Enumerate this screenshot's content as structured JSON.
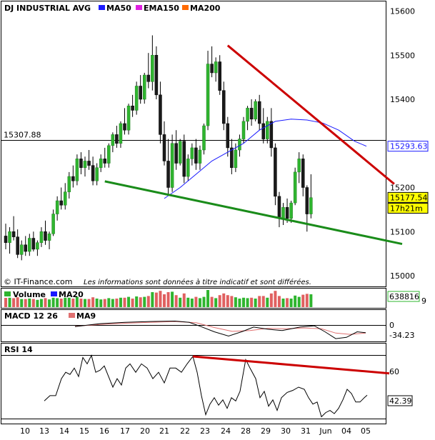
{
  "chart_data": [
    {
      "type": "candlestick",
      "title": "DJ INDUSTRIAL AVG",
      "legend": [
        {
          "name": "MA50",
          "color": "#1a1aff"
        },
        {
          "name": "EMA150",
          "color": "#e020e0"
        },
        {
          "name": "MA200",
          "color": "#ff6a00"
        }
      ],
      "ylim": [
        15000,
        15600
      ],
      "yticks": [
        15000,
        15100,
        15200,
        15300,
        15400,
        15500,
        15600
      ],
      "reference_level": {
        "label": "15307.88",
        "value": 15307.88
      },
      "badges": [
        {
          "text": "15293.63",
          "value": 15293.63,
          "color": "#1a1aff",
          "fill": "#ffffff"
        },
        {
          "text": "15177.54",
          "value": 15177.54,
          "color": "#000000",
          "fill": "#ffff00"
        },
        {
          "text": "17h21m",
          "value": 15153,
          "color": "#000000",
          "fill": "#ffff00"
        }
      ],
      "candles": [
        {
          "o": 15090,
          "h": 15118,
          "l": 15060,
          "c": 15075
        },
        {
          "o": 15075,
          "h": 15110,
          "l": 15050,
          "c": 15100
        },
        {
          "o": 15100,
          "h": 15135,
          "l": 15080,
          "c": 15088
        },
        {
          "o": 15088,
          "h": 15105,
          "l": 15040,
          "c": 15048
        },
        {
          "o": 15048,
          "h": 15080,
          "l": 15035,
          "c": 15070
        },
        {
          "o": 15070,
          "h": 15090,
          "l": 15045,
          "c": 15055
        },
        {
          "o": 15055,
          "h": 15095,
          "l": 15045,
          "c": 15085
        },
        {
          "o": 15085,
          "h": 15100,
          "l": 15055,
          "c": 15060
        },
        {
          "o": 15060,
          "h": 15080,
          "l": 15045,
          "c": 15075
        },
        {
          "o": 15075,
          "h": 15110,
          "l": 15065,
          "c": 15100
        },
        {
          "o": 15100,
          "h": 15125,
          "l": 15070,
          "c": 15080
        },
        {
          "o": 15080,
          "h": 15100,
          "l": 15060,
          "c": 15095
        },
        {
          "o": 15095,
          "h": 15150,
          "l": 15090,
          "c": 15140
        },
        {
          "o": 15140,
          "h": 15180,
          "l": 15125,
          "c": 15170
        },
        {
          "o": 15170,
          "h": 15200,
          "l": 15150,
          "c": 15160
        },
        {
          "o": 15160,
          "h": 15210,
          "l": 15150,
          "c": 15190
        },
        {
          "o": 15190,
          "h": 15235,
          "l": 15175,
          "c": 15225
        },
        {
          "o": 15225,
          "h": 15250,
          "l": 15200,
          "c": 15215
        },
        {
          "o": 15215,
          "h": 15275,
          "l": 15205,
          "c": 15265
        },
        {
          "o": 15265,
          "h": 15280,
          "l": 15230,
          "c": 15245
        },
        {
          "o": 15245,
          "h": 15270,
          "l": 15225,
          "c": 15260
        },
        {
          "o": 15260,
          "h": 15285,
          "l": 15240,
          "c": 15250
        },
        {
          "o": 15250,
          "h": 15270,
          "l": 15205,
          "c": 15215
        },
        {
          "o": 15215,
          "h": 15255,
          "l": 15205,
          "c": 15245
        },
        {
          "o": 15245,
          "h": 15275,
          "l": 15235,
          "c": 15265
        },
        {
          "o": 15265,
          "h": 15290,
          "l": 15245,
          "c": 15255
        },
        {
          "o": 15255,
          "h": 15300,
          "l": 15245,
          "c": 15295
        },
        {
          "o": 15295,
          "h": 15325,
          "l": 15280,
          "c": 15320
        },
        {
          "o": 15320,
          "h": 15340,
          "l": 15290,
          "c": 15300
        },
        {
          "o": 15300,
          "h": 15350,
          "l": 15290,
          "c": 15345
        },
        {
          "o": 15345,
          "h": 15380,
          "l": 15320,
          "c": 15330
        },
        {
          "o": 15330,
          "h": 15390,
          "l": 15320,
          "c": 15385
        },
        {
          "o": 15385,
          "h": 15410,
          "l": 15360,
          "c": 15375
        },
        {
          "o": 15375,
          "h": 15440,
          "l": 15365,
          "c": 15430
        },
        {
          "o": 15430,
          "h": 15455,
          "l": 15390,
          "c": 15400
        },
        {
          "o": 15400,
          "h": 15460,
          "l": 15390,
          "c": 15455
        },
        {
          "o": 15455,
          "h": 15505,
          "l": 15425,
          "c": 15440
        },
        {
          "o": 15440,
          "h": 15545,
          "l": 15420,
          "c": 15500
        },
        {
          "o": 15500,
          "h": 15520,
          "l": 15400,
          "c": 15410
        },
        {
          "o": 15410,
          "h": 15440,
          "l": 15300,
          "c": 15320
        },
        {
          "o": 15320,
          "h": 15350,
          "l": 15250,
          "c": 15260
        },
        {
          "o": 15260,
          "h": 15310,
          "l": 15185,
          "c": 15200
        },
        {
          "o": 15200,
          "h": 15320,
          "l": 15190,
          "c": 15300
        },
        {
          "o": 15300,
          "h": 15330,
          "l": 15240,
          "c": 15255
        },
        {
          "o": 15255,
          "h": 15310,
          "l": 15250,
          "c": 15305
        },
        {
          "o": 15305,
          "h": 15320,
          "l": 15210,
          "c": 15225
        },
        {
          "o": 15225,
          "h": 15275,
          "l": 15215,
          "c": 15265
        },
        {
          "o": 15265,
          "h": 15300,
          "l": 15250,
          "c": 15290
        },
        {
          "o": 15290,
          "h": 15310,
          "l": 15240,
          "c": 15255
        },
        {
          "o": 15255,
          "h": 15295,
          "l": 15240,
          "c": 15285
        },
        {
          "o": 15285,
          "h": 15345,
          "l": 15275,
          "c": 15340
        },
        {
          "o": 15340,
          "h": 15510,
          "l": 15330,
          "c": 15480
        },
        {
          "o": 15480,
          "h": 15520,
          "l": 15450,
          "c": 15460
        },
        {
          "o": 15460,
          "h": 15495,
          "l": 15440,
          "c": 15485
        },
        {
          "o": 15485,
          "h": 15500,
          "l": 15410,
          "c": 15420
        },
        {
          "o": 15420,
          "h": 15440,
          "l": 15330,
          "c": 15345
        },
        {
          "o": 15345,
          "h": 15360,
          "l": 15270,
          "c": 15290
        },
        {
          "o": 15290,
          "h": 15310,
          "l": 15230,
          "c": 15245
        },
        {
          "o": 15245,
          "h": 15300,
          "l": 15235,
          "c": 15285
        },
        {
          "o": 15285,
          "h": 15320,
          "l": 15270,
          "c": 15310
        },
        {
          "o": 15310,
          "h": 15360,
          "l": 15300,
          "c": 15350
        },
        {
          "o": 15350,
          "h": 15385,
          "l": 15330,
          "c": 15380
        },
        {
          "o": 15380,
          "h": 15400,
          "l": 15340,
          "c": 15355
        },
        {
          "o": 15355,
          "h": 15400,
          "l": 15350,
          "c": 15395
        },
        {
          "o": 15395,
          "h": 15410,
          "l": 15330,
          "c": 15345
        },
        {
          "o": 15345,
          "h": 15380,
          "l": 15300,
          "c": 15310
        },
        {
          "o": 15310,
          "h": 15360,
          "l": 15300,
          "c": 15350
        },
        {
          "o": 15350,
          "h": 15380,
          "l": 15270,
          "c": 15290
        },
        {
          "o": 15290,
          "h": 15300,
          "l": 15160,
          "c": 15180
        },
        {
          "o": 15180,
          "h": 15190,
          "l": 15110,
          "c": 15130
        },
        {
          "o": 15130,
          "h": 15165,
          "l": 15115,
          "c": 15155
        },
        {
          "o": 15155,
          "h": 15175,
          "l": 15120,
          "c": 15130
        },
        {
          "o": 15130,
          "h": 15170,
          "l": 15120,
          "c": 15165
        },
        {
          "o": 15165,
          "h": 15245,
          "l": 15160,
          "c": 15235
        },
        {
          "o": 15235,
          "h": 15280,
          "l": 15210,
          "c": 15265
        },
        {
          "o": 15265,
          "h": 15275,
          "l": 15180,
          "c": 15200
        },
        {
          "o": 15200,
          "h": 15205,
          "l": 15100,
          "c": 15140
        },
        {
          "o": 15140,
          "h": 15230,
          "l": 15130,
          "c": 15177
        }
      ],
      "ma50": [
        {
          "i": 40,
          "v": 15175
        },
        {
          "i": 44,
          "v": 15200
        },
        {
          "i": 48,
          "v": 15230
        },
        {
          "i": 52,
          "v": 15260
        },
        {
          "i": 56,
          "v": 15280
        },
        {
          "i": 60,
          "v": 15300
        },
        {
          "i": 64,
          "v": 15330
        },
        {
          "i": 68,
          "v": 15350
        },
        {
          "i": 72,
          "v": 15355
        },
        {
          "i": 76,
          "v": 15353
        },
        {
          "i": 80,
          "v": 15346
        },
        {
          "i": 84,
          "v": 15330
        },
        {
          "i": 88,
          "v": 15305
        },
        {
          "i": 91,
          "v": 15293.63
        }
      ],
      "trendlines": [
        {
          "color": "#cc0000",
          "from": {
            "i": 56,
            "v": 15522
          },
          "to": {
            "i": 98,
            "v": 15208
          }
        },
        {
          "color": "#1a8c1a",
          "from": {
            "i": 25,
            "v": 15214
          },
          "to": {
            "i": 100,
            "v": 15072
          }
        }
      ],
      "x_labels": [
        "10",
        "13",
        "14",
        "15",
        "16",
        "17",
        "20",
        "21",
        "22",
        "23",
        "24",
        "28",
        "29",
        "30",
        "31",
        "Jun",
        "04",
        "05"
      ]
    },
    {
      "type": "bar",
      "title": "Volume",
      "legend": [
        {
          "name": "Volume",
          "color": "#2fb52f"
        },
        {
          "name": "MA20",
          "color": "#1a1aff"
        }
      ],
      "badge": {
        "text": "638816",
        "extra": "9"
      }
    },
    {
      "type": "line",
      "title": "MACD 12 26",
      "legend": [
        {
          "name": "MA9",
          "color": "#e07070"
        }
      ],
      "yticks": [
        0,
        -34.23
      ],
      "badge": {
        "text": "-34.23"
      },
      "macd": [
        {
          "x": 105,
          "y": -6
        },
        {
          "x": 140,
          "y": 8
        },
        {
          "x": 175,
          "y": 14
        },
        {
          "x": 210,
          "y": 18
        },
        {
          "x": 245,
          "y": 20
        },
        {
          "x": 265,
          "y": 14
        },
        {
          "x": 280,
          "y": -4
        },
        {
          "x": 300,
          "y": -30
        },
        {
          "x": 320,
          "y": -50
        },
        {
          "x": 340,
          "y": -28
        },
        {
          "x": 355,
          "y": -8
        },
        {
          "x": 375,
          "y": -18
        },
        {
          "x": 395,
          "y": -24
        },
        {
          "x": 420,
          "y": -8
        },
        {
          "x": 440,
          "y": -2
        },
        {
          "x": 455,
          "y": -30
        },
        {
          "x": 470,
          "y": -62
        },
        {
          "x": 485,
          "y": -56
        },
        {
          "x": 500,
          "y": -30
        },
        {
          "x": 512,
          "y": -34.23
        }
      ],
      "signal": [
        {
          "x": 105,
          "y": -4
        },
        {
          "x": 140,
          "y": 4
        },
        {
          "x": 175,
          "y": 10
        },
        {
          "x": 210,
          "y": 14
        },
        {
          "x": 245,
          "y": 18
        },
        {
          "x": 275,
          "y": 12
        },
        {
          "x": 300,
          "y": -10
        },
        {
          "x": 325,
          "y": -28
        },
        {
          "x": 350,
          "y": -24
        },
        {
          "x": 375,
          "y": -14
        },
        {
          "x": 400,
          "y": -16
        },
        {
          "x": 425,
          "y": -12
        },
        {
          "x": 450,
          "y": -16
        },
        {
          "x": 470,
          "y": -36
        },
        {
          "x": 490,
          "y": -42
        },
        {
          "x": 512,
          "y": -36
        }
      ]
    },
    {
      "type": "line",
      "title": "RSI 14",
      "ylim": [
        20,
        90
      ],
      "yticks": [
        60
      ],
      "badge": {
        "text": "42.39"
      },
      "rsi": [
        {
          "x": 62,
          "y": 37
        },
        {
          "x": 70,
          "y": 42
        },
        {
          "x": 78,
          "y": 42
        },
        {
          "x": 86,
          "y": 58
        },
        {
          "x": 92,
          "y": 64
        },
        {
          "x": 98,
          "y": 62
        },
        {
          "x": 104,
          "y": 68
        },
        {
          "x": 110,
          "y": 60
        },
        {
          "x": 116,
          "y": 78
        },
        {
          "x": 122,
          "y": 72
        },
        {
          "x": 128,
          "y": 80
        },
        {
          "x": 134,
          "y": 64
        },
        {
          "x": 140,
          "y": 66
        },
        {
          "x": 146,
          "y": 70
        },
        {
          "x": 152,
          "y": 60
        },
        {
          "x": 158,
          "y": 50
        },
        {
          "x": 164,
          "y": 58
        },
        {
          "x": 170,
          "y": 52
        },
        {
          "x": 176,
          "y": 68
        },
        {
          "x": 182,
          "y": 72
        },
        {
          "x": 190,
          "y": 64
        },
        {
          "x": 198,
          "y": 72
        },
        {
          "x": 206,
          "y": 68
        },
        {
          "x": 214,
          "y": 58
        },
        {
          "x": 222,
          "y": 64
        },
        {
          "x": 230,
          "y": 54
        },
        {
          "x": 238,
          "y": 68
        },
        {
          "x": 246,
          "y": 68
        },
        {
          "x": 254,
          "y": 64
        },
        {
          "x": 262,
          "y": 72
        },
        {
          "x": 270,
          "y": 79
        },
        {
          "x": 276,
          "y": 64
        },
        {
          "x": 282,
          "y": 42
        },
        {
          "x": 288,
          "y": 24
        },
        {
          "x": 294,
          "y": 34
        },
        {
          "x": 300,
          "y": 40
        },
        {
          "x": 306,
          "y": 33
        },
        {
          "x": 312,
          "y": 38
        },
        {
          "x": 318,
          "y": 30
        },
        {
          "x": 324,
          "y": 40
        },
        {
          "x": 330,
          "y": 37
        },
        {
          "x": 336,
          "y": 46
        },
        {
          "x": 344,
          "y": 76
        },
        {
          "x": 350,
          "y": 68
        },
        {
          "x": 358,
          "y": 58
        },
        {
          "x": 364,
          "y": 40
        },
        {
          "x": 370,
          "y": 46
        },
        {
          "x": 376,
          "y": 32
        },
        {
          "x": 382,
          "y": 38
        },
        {
          "x": 388,
          "y": 28
        },
        {
          "x": 394,
          "y": 40
        },
        {
          "x": 402,
          "y": 45
        },
        {
          "x": 410,
          "y": 47
        },
        {
          "x": 418,
          "y": 50
        },
        {
          "x": 426,
          "y": 48
        },
        {
          "x": 432,
          "y": 40
        },
        {
          "x": 438,
          "y": 34
        },
        {
          "x": 444,
          "y": 36
        },
        {
          "x": 450,
          "y": 22
        },
        {
          "x": 456,
          "y": 26
        },
        {
          "x": 462,
          "y": 28
        },
        {
          "x": 468,
          "y": 25
        },
        {
          "x": 474,
          "y": 30
        },
        {
          "x": 480,
          "y": 38
        },
        {
          "x": 486,
          "y": 48
        },
        {
          "x": 492,
          "y": 44
        },
        {
          "x": 498,
          "y": 36
        },
        {
          "x": 504,
          "y": 36
        },
        {
          "x": 510,
          "y": 40
        },
        {
          "x": 514,
          "y": 42.39
        }
      ],
      "trendline": {
        "color": "#cc0000",
        "from": {
          "x": 270,
          "y": 79
        },
        "to": {
          "x": 545,
          "y": 63
        }
      }
    }
  ],
  "footer": {
    "source": "© IT-Finance.com",
    "disclaimer": "Les informations sont données à titre indicatif et sont différées."
  },
  "colors": {
    "up": "#2fb52f",
    "down": "#1a1a1a",
    "wick": "#000000"
  }
}
